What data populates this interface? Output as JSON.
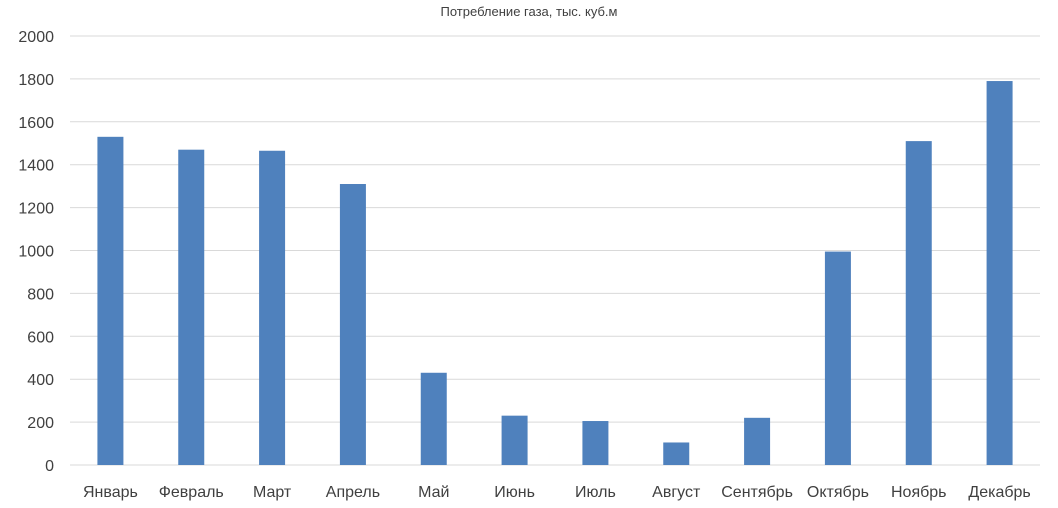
{
  "chart_data": {
    "type": "bar",
    "title": "Потребление газа, тыс. куб.м",
    "xlabel": "",
    "ylabel": "",
    "categories": [
      "Январь",
      "Февраль",
      "Март",
      "Апрель",
      "Май",
      "Июнь",
      "Июль",
      "Август",
      "Сентябрь",
      "Октябрь",
      "Ноябрь",
      "Декабрь"
    ],
    "values": [
      1530,
      1470,
      1465,
      1310,
      430,
      230,
      205,
      105,
      220,
      995,
      1510,
      1790
    ],
    "ylim": [
      0,
      2000
    ],
    "yticks": [
      "0",
      "200",
      "400",
      "600",
      "800",
      "1000",
      "1200",
      "1400",
      "1600",
      "1800",
      "2000"
    ],
    "grid": true,
    "legend": "none",
    "bar_color": "#4f81bd",
    "grid_color": "#d9d9d9",
    "text_color": "#404040"
  }
}
